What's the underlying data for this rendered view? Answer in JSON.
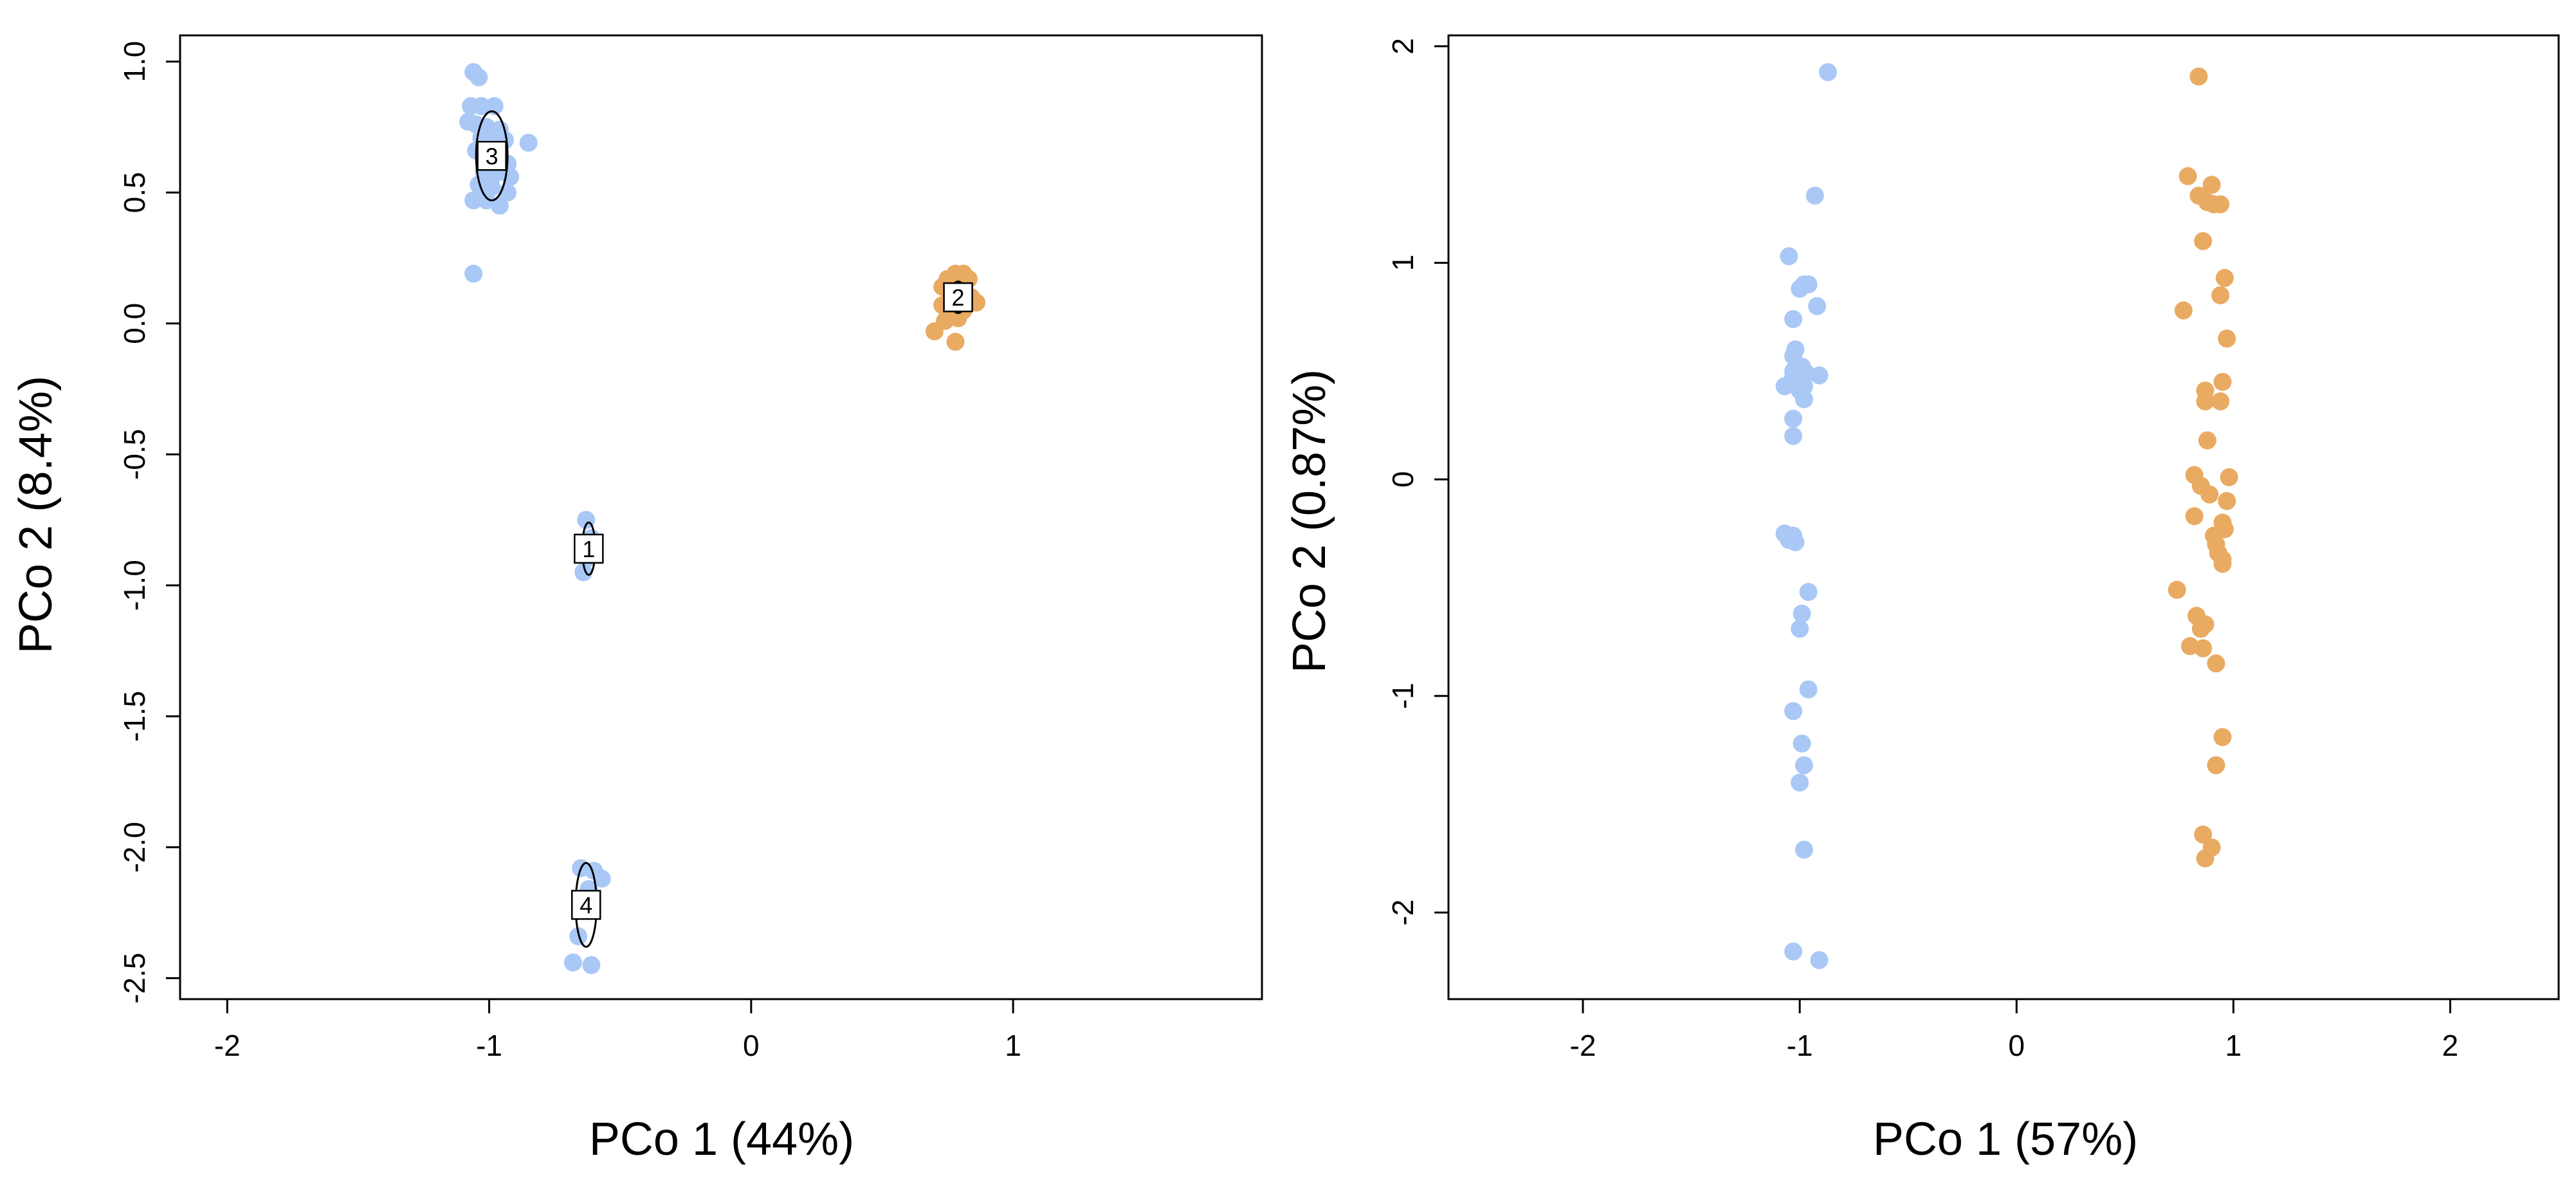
{
  "colors": {
    "group_a": "#a9c8f6",
    "group_b": "#e9aa62"
  },
  "chart_data": [
    {
      "type": "scatter",
      "xlabel": "PCo 1 (44%)",
      "ylabel": "PCo 2 (8.4%)",
      "xlim": [
        -2.18,
        1.95
      ],
      "ylim": [
        -2.58,
        1.1
      ],
      "xticks": [
        -2,
        -1,
        0,
        1
      ],
      "xtick_labels": [
        "-2",
        "-1",
        "0",
        "1"
      ],
      "yticks": [
        1.0,
        0.5,
        0.0,
        -0.5,
        -1.0,
        -1.5,
        -2.0,
        -2.5
      ],
      "ytick_labels": [
        "1.0",
        "0.5",
        "0.0",
        "-0.5",
        "-1.0",
        "-1.5",
        "-2.0",
        "-2.5"
      ],
      "grid": false,
      "series": [
        {
          "color": "#a9c8f6",
          "points": [
            [
              -1.06,
              0.96
            ],
            [
              -1.04,
              0.94
            ],
            [
              -1.07,
              0.83
            ],
            [
              -1.03,
              0.83
            ],
            [
              -0.98,
              0.83
            ],
            [
              -1.08,
              0.77
            ],
            [
              -1.05,
              0.76
            ],
            [
              -1.01,
              0.75
            ],
            [
              -0.96,
              0.74
            ],
            [
              -1.03,
              0.71
            ],
            [
              -0.99,
              0.7
            ],
            [
              -0.94,
              0.7
            ],
            [
              -0.85,
              0.69
            ],
            [
              -1.05,
              0.66
            ],
            [
              -1.01,
              0.64
            ],
            [
              -0.97,
              0.62
            ],
            [
              -0.93,
              0.61
            ],
            [
              -1.02,
              0.58
            ],
            [
              -0.98,
              0.57
            ],
            [
              -0.92,
              0.56
            ],
            [
              -1.04,
              0.53
            ],
            [
              -0.99,
              0.52
            ],
            [
              -0.93,
              0.5
            ],
            [
              -1.06,
              0.47
            ],
            [
              -1.01,
              0.47
            ],
            [
              -0.96,
              0.45
            ],
            [
              -1.06,
              0.19
            ],
            [
              -0.63,
              -0.75
            ],
            [
              -0.61,
              -0.82
            ],
            [
              -0.63,
              -0.9
            ],
            [
              -0.64,
              -0.95
            ],
            [
              -0.65,
              -2.08
            ],
            [
              -0.6,
              -2.09
            ],
            [
              -0.57,
              -2.12
            ],
            [
              -0.62,
              -2.16
            ],
            [
              -0.66,
              -2.34
            ],
            [
              -0.68,
              -2.44
            ],
            [
              -0.61,
              -2.45
            ]
          ]
        },
        {
          "color": "#e9aa62",
          "points": [
            [
              0.78,
              0.19
            ],
            [
              0.81,
              0.19
            ],
            [
              0.75,
              0.17
            ],
            [
              0.83,
              0.17
            ],
            [
              0.78,
              0.15
            ],
            [
              0.73,
              0.14
            ],
            [
              0.8,
              0.12
            ],
            [
              0.76,
              0.11
            ],
            [
              0.84,
              0.1
            ],
            [
              0.78,
              0.08
            ],
            [
              0.73,
              0.07
            ],
            [
              0.86,
              0.08
            ],
            [
              0.81,
              0.05
            ],
            [
              0.76,
              0.04
            ],
            [
              0.79,
              0.02
            ],
            [
              0.74,
              0.01
            ],
            [
              0.7,
              -0.03
            ],
            [
              0.78,
              -0.07
            ]
          ]
        }
      ],
      "clusters": [
        {
          "label": "1",
          "center": [
            -0.62,
            -0.86
          ],
          "half_width": 0.025,
          "half_height": 0.1
        },
        {
          "label": "2",
          "center": [
            0.79,
            0.1
          ],
          "half_width": 0.03,
          "half_height": 0.06
        },
        {
          "label": "3",
          "center": [
            -0.99,
            0.64
          ],
          "half_width": 0.06,
          "half_height": 0.17
        },
        {
          "label": "4",
          "center": [
            -0.63,
            -2.22
          ],
          "half_width": 0.04,
          "half_height": 0.16
        }
      ]
    },
    {
      "type": "scatter",
      "xlabel": "PCo 1 (57%)",
      "ylabel": "PCo 2 (0.87%)",
      "xlim": [
        -2.62,
        2.5
      ],
      "ylim": [
        -2.4,
        2.05
      ],
      "xticks": [
        -2,
        -1,
        0,
        1,
        2
      ],
      "xtick_labels": [
        "-2",
        "-1",
        "0",
        "1",
        "2"
      ],
      "yticks": [
        2,
        1,
        0,
        -1,
        -2
      ],
      "ytick_labels": [
        "2",
        "1",
        "0",
        "-1",
        "-2"
      ],
      "grid": false,
      "series": [
        {
          "color": "#a9c8f6",
          "points": [
            [
              -0.87,
              1.88
            ],
            [
              -0.93,
              1.31
            ],
            [
              -1.05,
              1.03
            ],
            [
              -0.98,
              0.9
            ],
            [
              -0.96,
              0.9
            ],
            [
              -1.0,
              0.88
            ],
            [
              -0.92,
              0.8
            ],
            [
              -1.03,
              0.74
            ],
            [
              -1.02,
              0.6
            ],
            [
              -1.03,
              0.57
            ],
            [
              -0.99,
              0.52
            ],
            [
              -1.03,
              0.5
            ],
            [
              -0.97,
              0.49
            ],
            [
              -0.91,
              0.48
            ],
            [
              -1.03,
              0.47
            ],
            [
              -0.99,
              0.45
            ],
            [
              -1.07,
              0.43
            ],
            [
              -0.98,
              0.43
            ],
            [
              -1.0,
              0.41
            ],
            [
              -0.98,
              0.37
            ],
            [
              -1.03,
              0.28
            ],
            [
              -1.03,
              0.2
            ],
            [
              -1.07,
              -0.25
            ],
            [
              -1.03,
              -0.26
            ],
            [
              -1.05,
              -0.28
            ],
            [
              -1.02,
              -0.29
            ],
            [
              -0.96,
              -0.52
            ],
            [
              -0.99,
              -0.62
            ],
            [
              -1.0,
              -0.69
            ],
            [
              -0.96,
              -0.97
            ],
            [
              -1.03,
              -1.07
            ],
            [
              -0.99,
              -1.22
            ],
            [
              -0.98,
              -1.32
            ],
            [
              -1.0,
              -1.4
            ],
            [
              -0.98,
              -1.71
            ],
            [
              -1.03,
              -2.18
            ],
            [
              -0.91,
              -2.22
            ]
          ]
        },
        {
          "color": "#e9aa62",
          "points": [
            [
              0.84,
              1.86
            ],
            [
              0.79,
              1.4
            ],
            [
              0.9,
              1.36
            ],
            [
              0.84,
              1.31
            ],
            [
              0.88,
              1.28
            ],
            [
              0.91,
              1.27
            ],
            [
              0.94,
              1.27
            ],
            [
              0.86,
              1.1
            ],
            [
              0.96,
              0.93
            ],
            [
              0.94,
              0.85
            ],
            [
              0.77,
              0.78
            ],
            [
              0.97,
              0.65
            ],
            [
              0.95,
              0.45
            ],
            [
              0.87,
              0.41
            ],
            [
              0.94,
              0.36
            ],
            [
              0.87,
              0.36
            ],
            [
              0.88,
              0.18
            ],
            [
              0.82,
              0.02
            ],
            [
              0.98,
              0.01
            ],
            [
              0.85,
              -0.03
            ],
            [
              0.89,
              -0.07
            ],
            [
              0.97,
              -0.1
            ],
            [
              0.82,
              -0.17
            ],
            [
              0.95,
              -0.2
            ],
            [
              0.96,
              -0.23
            ],
            [
              0.91,
              -0.26
            ],
            [
              0.92,
              -0.3
            ],
            [
              0.93,
              -0.34
            ],
            [
              0.95,
              -0.37
            ],
            [
              0.95,
              -0.39
            ],
            [
              0.74,
              -0.51
            ],
            [
              0.83,
              -0.63
            ],
            [
              0.87,
              -0.67
            ],
            [
              0.85,
              -0.69
            ],
            [
              0.8,
              -0.77
            ],
            [
              0.86,
              -0.78
            ],
            [
              0.92,
              -0.85
            ],
            [
              0.95,
              -1.19
            ],
            [
              0.92,
              -1.32
            ],
            [
              0.86,
              -1.64
            ],
            [
              0.9,
              -1.7
            ],
            [
              0.87,
              -1.75
            ]
          ]
        }
      ]
    }
  ]
}
